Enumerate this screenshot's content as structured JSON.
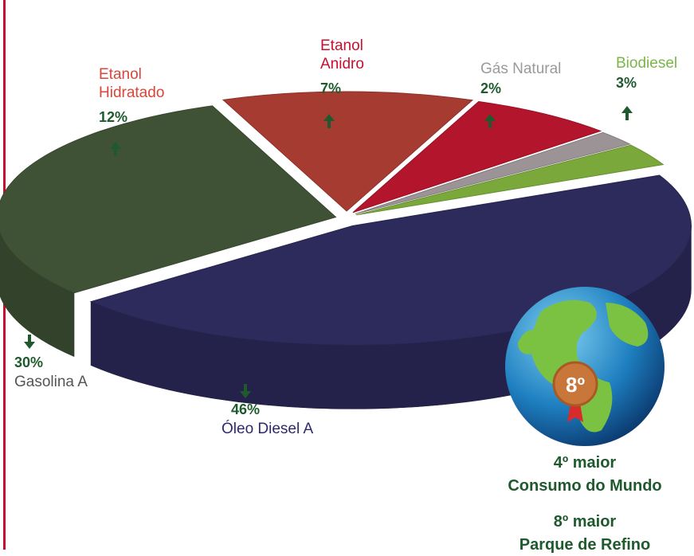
{
  "chart_data": {
    "type": "pie",
    "categories": [
      "Óleo Diesel A",
      "Gasolina A",
      "Etanol\nHidratado",
      "Etanol\nAnidro",
      "Gás Natural",
      "Biodiesel"
    ],
    "values": [
      46,
      30,
      12,
      7,
      2,
      3
    ],
    "value_labels": [
      "46%",
      "30%",
      "12%",
      "7%",
      "2%",
      "3%"
    ],
    "colors": [
      "#2d2a5c",
      "#3f5236",
      "#a63b31",
      "#b3152c",
      "#9b9395",
      "#7aa83b"
    ],
    "label_colors": [
      "#2e2a6b",
      "#555555",
      "#d9463b",
      "#c8102e",
      "#9a9a9a",
      "#7ab648"
    ],
    "annotations": [
      "8º",
      "4º maior",
      "Consumo do Mundo",
      "8º maior",
      "Parque de Refino"
    ]
  }
}
